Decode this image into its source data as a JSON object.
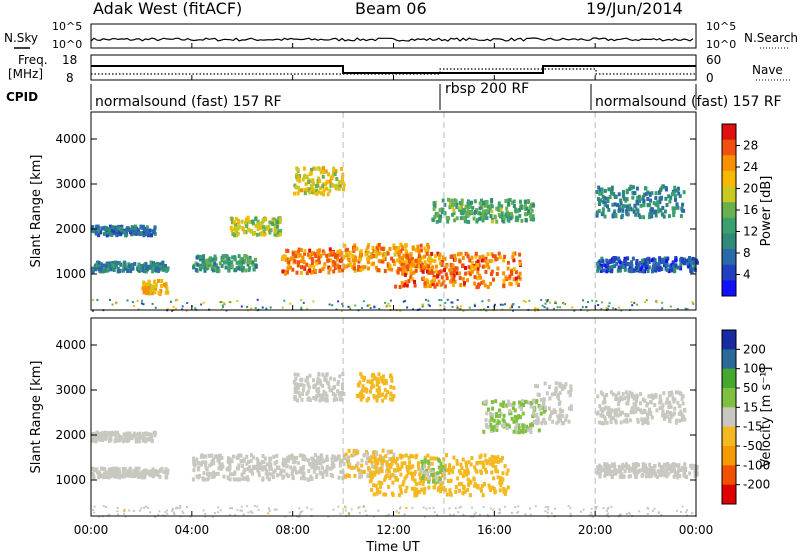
{
  "header": {
    "title": "Adak West (fitACF)",
    "beam": "Beam 06",
    "date": "19/Jun/2014"
  },
  "noise_panel": {
    "left_label": "N.Sky",
    "left_ticks": [
      "10^5",
      "10^0"
    ],
    "right_label": "N.Search",
    "right_ticks": [
      "10^5",
      "10^0"
    ]
  },
  "freq_panel": {
    "left_label_1": "Freq.",
    "left_label_2": "[MHz]",
    "left_ticks": [
      "18",
      "8"
    ],
    "right_label": "Nave",
    "right_ticks": [
      "60",
      "0"
    ]
  },
  "cpid_panel": {
    "label": "CPID",
    "segments": [
      {
        "label": "normalsound (fast) 157 RF",
        "start": "00:00",
        "end": "14:00"
      },
      {
        "label": "rbsp 200 RF",
        "start": "14:00",
        "end": "20:00"
      },
      {
        "label": "normalsound (fast) 157 RF",
        "start": "20:00",
        "end": "24:00"
      }
    ]
  },
  "x_axis": {
    "label": "Time UT",
    "ticks": [
      "00:00",
      "04:00",
      "08:00",
      "12:00",
      "16:00",
      "20:00",
      "00:00"
    ]
  },
  "power_colorbar": {
    "label": "Power [dB]",
    "ticks": [
      "28",
      "24",
      "20",
      "16",
      "12",
      "8",
      "4"
    ]
  },
  "velocity_colorbar": {
    "label": "Velocity [m s⁻¹]",
    "ticks": [
      "200",
      "100",
      "50",
      "15",
      "-15",
      "-50",
      "-100",
      "-200"
    ]
  },
  "chart_data": [
    {
      "type": "heatmap",
      "panel": "power",
      "ylabel": "Slant Range [km]",
      "xlabel": "Time UT",
      "xlim_hours": [
        0,
        24
      ],
      "ylim_km": [
        200,
        4600
      ],
      "y_ticks": [
        1000,
        2000,
        3000,
        4000
      ],
      "value_range_db": [
        0,
        32
      ],
      "bands": [
        {
          "t": [
            0,
            2.5
          ],
          "range": [
            1900,
            2100
          ],
          "level": 8
        },
        {
          "t": [
            0,
            3
          ],
          "range": [
            1100,
            1300
          ],
          "level": 10
        },
        {
          "t": [
            2,
            3
          ],
          "range": [
            600,
            900
          ],
          "level": 22
        },
        {
          "t": [
            4,
            6.5
          ],
          "range": [
            1100,
            1450
          ],
          "level": 12
        },
        {
          "t": [
            5.5,
            7.5
          ],
          "range": [
            1900,
            2300
          ],
          "level": 18
        },
        {
          "t": [
            7.5,
            10
          ],
          "range": [
            1050,
            1600
          ],
          "level": 26
        },
        {
          "t": [
            8,
            10
          ],
          "range": [
            2800,
            3400
          ],
          "level": 20
        },
        {
          "t": [
            10,
            13.5
          ],
          "range": [
            1100,
            1700
          ],
          "level": 24
        },
        {
          "t": [
            12,
            17
          ],
          "range": [
            750,
            1500
          ],
          "level": 26
        },
        {
          "t": [
            13.5,
            17.5
          ],
          "range": [
            2200,
            2700
          ],
          "level": 14
        },
        {
          "t": [
            20,
            23.5
          ],
          "range": [
            2300,
            3000
          ],
          "level": 10
        },
        {
          "t": [
            20,
            24
          ],
          "range": [
            1100,
            1400
          ],
          "level": 6
        }
      ]
    },
    {
      "type": "heatmap",
      "panel": "velocity",
      "ylabel": "Slant Range [km]",
      "xlabel": "Time UT",
      "xlim_hours": [
        0,
        24
      ],
      "ylim_km": [
        200,
        4600
      ],
      "y_ticks": [
        1000,
        2000,
        3000,
        4000
      ],
      "value_range_ms": [
        -250,
        250
      ],
      "bands": [
        {
          "t": [
            0,
            3
          ],
          "range": [
            1100,
            1300
          ],
          "velocity": 0
        },
        {
          "t": [
            0,
            2.5
          ],
          "range": [
            1900,
            2100
          ],
          "velocity": 0
        },
        {
          "t": [
            4,
            10
          ],
          "range": [
            1050,
            1600
          ],
          "velocity": 0
        },
        {
          "t": [
            8,
            10
          ],
          "range": [
            2800,
            3400
          ],
          "velocity": 0
        },
        {
          "t": [
            10,
            12
          ],
          "range": [
            1100,
            1700
          ],
          "velocity": -30
        },
        {
          "t": [
            10.5,
            12
          ],
          "range": [
            2800,
            3400
          ],
          "velocity": -40
        },
        {
          "t": [
            11,
            16.5
          ],
          "range": [
            700,
            1600
          ],
          "velocity": -40
        },
        {
          "t": [
            13,
            14
          ],
          "range": [
            1000,
            1500
          ],
          "velocity": 30
        },
        {
          "t": [
            15.5,
            18
          ],
          "range": [
            2100,
            2800
          ],
          "velocity": 30
        },
        {
          "t": [
            17.5,
            19
          ],
          "range": [
            2300,
            3200
          ],
          "velocity": 0
        },
        {
          "t": [
            20,
            23.5
          ],
          "range": [
            2300,
            3000
          ],
          "velocity": 0
        },
        {
          "t": [
            20,
            24
          ],
          "range": [
            1100,
            1400
          ],
          "velocity": 0
        }
      ]
    }
  ]
}
